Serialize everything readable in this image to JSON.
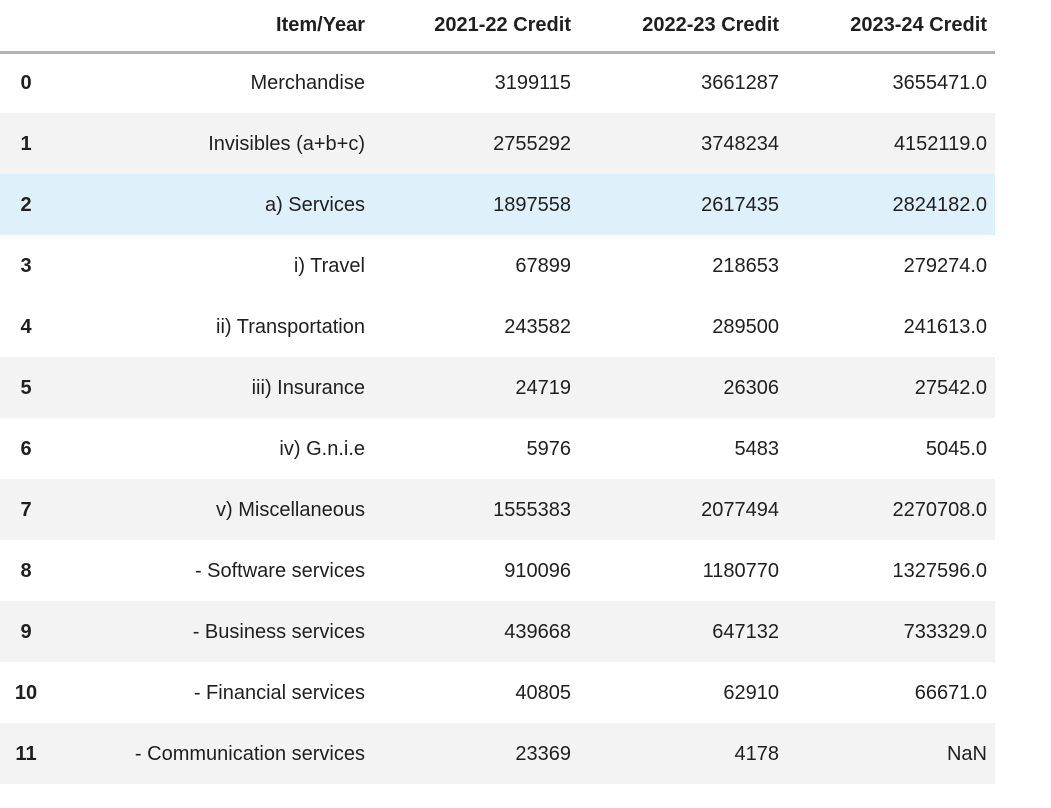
{
  "chart_data": {
    "type": "table",
    "columns": [
      "Item/Year",
      "2021-22 Credit",
      "2022-23 Credit",
      "2023-24 Credit"
    ],
    "index": [
      "0",
      "1",
      "2",
      "3",
      "4",
      "5",
      "6",
      "7",
      "8",
      "9",
      "10",
      "11"
    ],
    "rows": [
      {
        "index": "0",
        "item": "Merchandise",
        "values": [
          "3199115",
          "3661287",
          "3655471.0"
        ],
        "bg": "plain"
      },
      {
        "index": "1",
        "item": "Invisibles (a+b+c)",
        "values": [
          "2755292",
          "3748234",
          "4152119.0"
        ],
        "bg": "stripe"
      },
      {
        "index": "2",
        "item": "a) Services",
        "values": [
          "1897558",
          "2617435",
          "2824182.0"
        ],
        "bg": "highlight"
      },
      {
        "index": "3",
        "item": "i) Travel",
        "values": [
          "67899",
          "218653",
          "279274.0"
        ],
        "bg": "plain"
      },
      {
        "index": "4",
        "item": "ii) Transportation",
        "values": [
          "243582",
          "289500",
          "241613.0"
        ],
        "bg": "plain"
      },
      {
        "index": "5",
        "item": "iii) Insurance",
        "values": [
          "24719",
          "26306",
          "27542.0"
        ],
        "bg": "stripe"
      },
      {
        "index": "6",
        "item": "iv) G.n.i.e",
        "values": [
          "5976",
          "5483",
          "5045.0"
        ],
        "bg": "plain"
      },
      {
        "index": "7",
        "item": "v) Miscellaneous",
        "values": [
          "1555383",
          "2077494",
          "2270708.0"
        ],
        "bg": "stripe"
      },
      {
        "index": "8",
        "item": "- Software services",
        "values": [
          "910096",
          "1180770",
          "1327596.0"
        ],
        "bg": "plain"
      },
      {
        "index": "9",
        "item": "- Business services",
        "values": [
          "439668",
          "647132",
          "733329.0"
        ],
        "bg": "stripe"
      },
      {
        "index": "10",
        "item": "- Financial services",
        "values": [
          "40805",
          "62910",
          "66671.0"
        ],
        "bg": "plain"
      },
      {
        "index": "11",
        "item": "- Communication services",
        "values": [
          "23369",
          "4178",
          "NaN"
        ],
        "bg": "stripe"
      }
    ],
    "colors": {
      "stripe": "#f3f3f3",
      "highlight": "#def1fb",
      "header_border": "#b1b1b1",
      "text": "#1f1f1f"
    }
  }
}
